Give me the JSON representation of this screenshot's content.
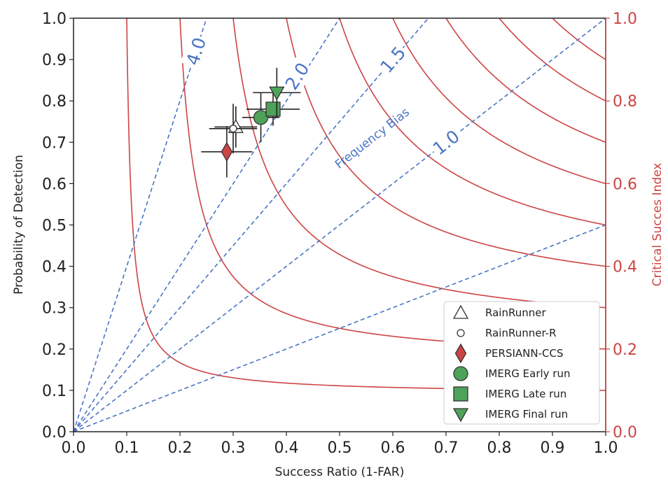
{
  "chart_data": {
    "type": "scatter",
    "title": "",
    "xlabel": "Success Ratio (1-FAR)",
    "ylabel": "Probability of Detection",
    "y2label": "Critical Succes Index",
    "xlim": [
      0,
      1
    ],
    "ylim": [
      0,
      1
    ],
    "y2lim": [
      0,
      1
    ],
    "x_ticks": [
      "0.0",
      "0.1",
      "0.2",
      "0.3",
      "0.4",
      "0.5",
      "0.6",
      "0.7",
      "0.8",
      "0.9",
      "1.0"
    ],
    "y_ticks": [
      "0.0",
      "0.1",
      "0.2",
      "0.3",
      "0.4",
      "0.5",
      "0.6",
      "0.7",
      "0.8",
      "0.9",
      "1.0"
    ],
    "y2_ticks": [
      "0.0",
      "0.2",
      "0.4",
      "0.6",
      "0.8",
      "1.0"
    ],
    "csi_contours": [
      0.1,
      0.2,
      0.3,
      0.4,
      0.5,
      0.6,
      0.7,
      0.8,
      0.9
    ],
    "bias_lines": [
      {
        "bias": 0.5,
        "label": ""
      },
      {
        "bias": 1.0,
        "label": "1.0"
      },
      {
        "bias": 1.5,
        "label": "1.5"
      },
      {
        "bias": 2.0,
        "label": "2.0"
      },
      {
        "bias": 4.0,
        "label": "4.0"
      }
    ],
    "bias_axis_label": "Frequency Bias",
    "series": [
      {
        "name": "RainRunner",
        "marker": "triangle-up",
        "color": "#ffffff",
        "x": 0.305,
        "y": 0.737,
        "xerr": 0.04,
        "yerr": 0.05
      },
      {
        "name": "RainRunner-R",
        "marker": "circle-small",
        "color": "#ffffff",
        "x": 0.3,
        "y": 0.733,
        "xerr": 0.045,
        "yerr": 0.06
      },
      {
        "name": "PERSIANN-CCS",
        "marker": "diamond",
        "color": "#cc4444",
        "x": 0.288,
        "y": 0.677,
        "xerr": 0.048,
        "yerr": 0.062
      },
      {
        "name": "IMERG Early run",
        "marker": "circle",
        "color": "#4ea25a",
        "x": 0.352,
        "y": 0.76,
        "xerr": 0.035,
        "yerr": 0.06
      },
      {
        "name": "IMERG Late run",
        "marker": "square",
        "color": "#4ea25a",
        "x": 0.375,
        "y": 0.78,
        "xerr": 0.05,
        "yerr": 0.04
      },
      {
        "name": "IMERG Final run",
        "marker": "triangle-down",
        "color": "#4ea25a",
        "x": 0.382,
        "y": 0.82,
        "xerr": 0.045,
        "yerr": 0.06
      }
    ],
    "legend_position": "bottom-right",
    "colors": {
      "csi": "#cc4444",
      "bias": "#4a74c4",
      "axis": "#222222",
      "marker_edge": "#333333"
    }
  }
}
